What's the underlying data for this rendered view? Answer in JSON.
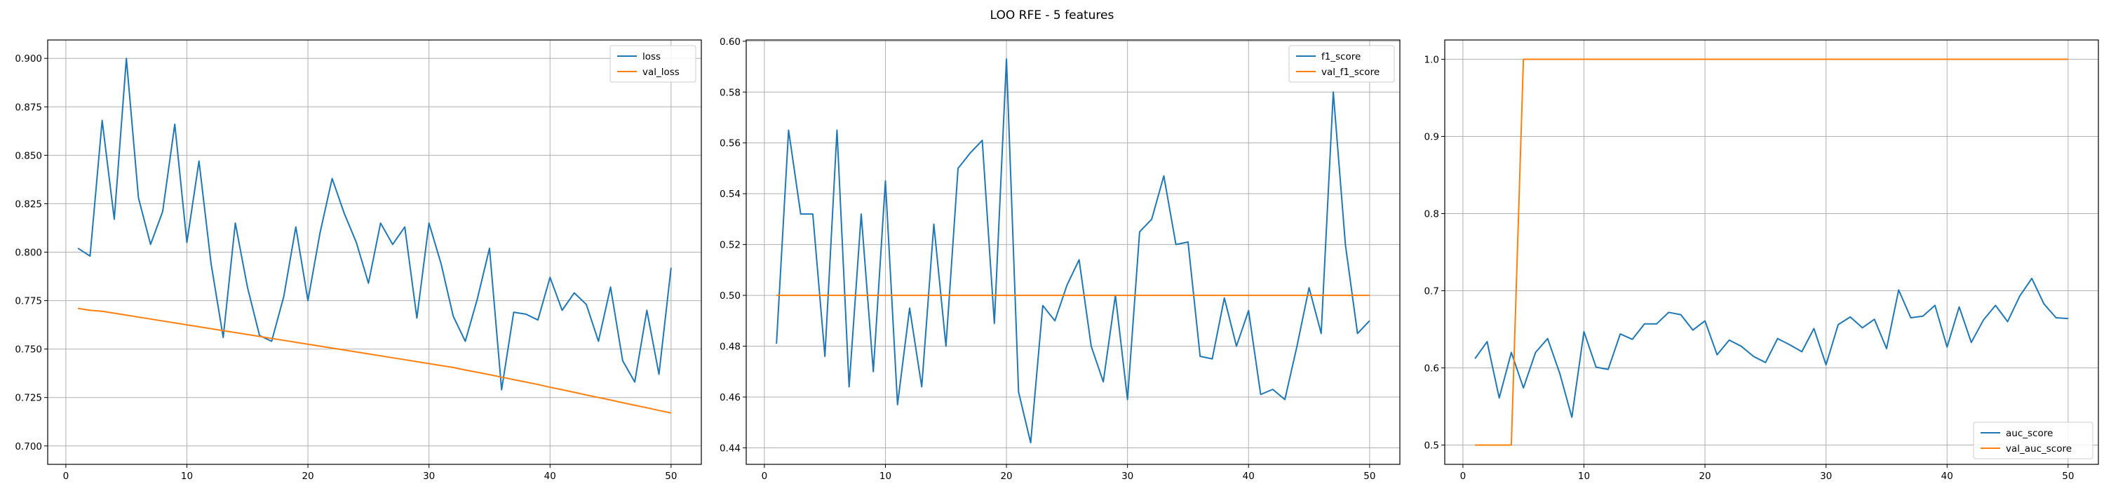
{
  "title": "LOO RFE - 5 features",
  "colors": {
    "series1": "#1f77b4",
    "series2": "#ff7f0e",
    "grid": "#b0b0b0",
    "frame": "#000000"
  },
  "chart_data": [
    {
      "type": "line",
      "xlim": [
        -1.5,
        52.5
      ],
      "ylim": [
        0.6905,
        0.9095
      ],
      "xticks": [
        0,
        10,
        20,
        30,
        40,
        50
      ],
      "yticks": [
        0.7,
        0.725,
        0.75,
        0.775,
        0.8,
        0.825,
        0.85,
        0.875,
        0.9
      ],
      "ytick_labels": [
        "0.700",
        "0.725",
        "0.750",
        "0.775",
        "0.800",
        "0.825",
        "0.850",
        "0.875",
        "0.900"
      ],
      "grid": true,
      "legend_position": "upper right",
      "x": [
        1,
        2,
        3,
        4,
        5,
        6,
        7,
        8,
        9,
        10,
        11,
        12,
        13,
        14,
        15,
        16,
        17,
        18,
        19,
        20,
        21,
        22,
        23,
        24,
        25,
        26,
        27,
        28,
        29,
        30,
        31,
        32,
        33,
        34,
        35,
        36,
        37,
        38,
        39,
        40,
        41,
        42,
        43,
        44,
        45,
        46,
        47,
        48,
        49,
        50
      ],
      "series": [
        {
          "name": "loss",
          "values": [
            0.802,
            0.798,
            0.868,
            0.817,
            0.9,
            0.828,
            0.804,
            0.821,
            0.866,
            0.805,
            0.847,
            0.794,
            0.756,
            0.815,
            0.782,
            0.757,
            0.754,
            0.777,
            0.813,
            0.775,
            0.81,
            0.838,
            0.82,
            0.805,
            0.784,
            0.815,
            0.804,
            0.813,
            0.766,
            0.815,
            0.794,
            0.767,
            0.754,
            0.776,
            0.802,
            0.729,
            0.769,
            0.768,
            0.765,
            0.787,
            0.77,
            0.779,
            0.773,
            0.754,
            0.782,
            0.744,
            0.733,
            0.77,
            0.737,
            0.792
          ]
        },
        {
          "name": "val_loss",
          "values": [
            0.771,
            0.77,
            0.7695,
            0.7685,
            0.7675,
            0.7665,
            0.7655,
            0.7645,
            0.7635,
            0.7625,
            0.7615,
            0.7605,
            0.7595,
            0.7585,
            0.7575,
            0.7565,
            0.7555,
            0.7545,
            0.7535,
            0.7525,
            0.7515,
            0.7505,
            0.7495,
            0.7485,
            0.7475,
            0.7465,
            0.7455,
            0.7445,
            0.7435,
            0.7425,
            0.7415,
            0.7405,
            0.7392,
            0.738,
            0.7368,
            0.7355,
            0.7342,
            0.733,
            0.7317,
            0.7303,
            0.729,
            0.7277,
            0.7263,
            0.725,
            0.7237,
            0.7223,
            0.721,
            0.7197,
            0.7183,
            0.717
          ]
        }
      ]
    },
    {
      "type": "line",
      "xlim": [
        -1.5,
        52.5
      ],
      "ylim": [
        0.4335,
        0.6005
      ],
      "xticks": [
        0,
        10,
        20,
        30,
        40,
        50
      ],
      "yticks": [
        0.44,
        0.46,
        0.48,
        0.5,
        0.52,
        0.54,
        0.56,
        0.58,
        0.6
      ],
      "ytick_labels": [
        "0.44",
        "0.46",
        "0.48",
        "0.50",
        "0.52",
        "0.54",
        "0.56",
        "0.58",
        "0.60"
      ],
      "grid": true,
      "legend_position": "upper right",
      "x": [
        1,
        2,
        3,
        4,
        5,
        6,
        7,
        8,
        9,
        10,
        11,
        12,
        13,
        14,
        15,
        16,
        17,
        18,
        19,
        20,
        21,
        22,
        23,
        24,
        25,
        26,
        27,
        28,
        29,
        30,
        31,
        32,
        33,
        34,
        35,
        36,
        37,
        38,
        39,
        40,
        41,
        42,
        43,
        44,
        45,
        46,
        47,
        48,
        49,
        50
      ],
      "series": [
        {
          "name": "f1_score",
          "values": [
            0.481,
            0.565,
            0.532,
            0.532,
            0.476,
            0.565,
            0.464,
            0.532,
            0.47,
            0.545,
            0.457,
            0.495,
            0.464,
            0.528,
            0.48,
            0.55,
            0.556,
            0.561,
            0.489,
            0.593,
            0.462,
            0.442,
            0.496,
            0.49,
            0.504,
            0.514,
            0.48,
            0.466,
            0.5,
            0.459,
            0.525,
            0.53,
            0.547,
            0.52,
            0.521,
            0.476,
            0.475,
            0.499,
            0.48,
            0.494,
            0.461,
            0.463,
            0.459,
            0.48,
            0.503,
            0.485,
            0.58,
            0.52,
            0.485,
            0.49
          ]
        },
        {
          "name": "val_f1_score",
          "values": [
            0.5,
            0.5,
            0.5,
            0.5,
            0.5,
            0.5,
            0.5,
            0.5,
            0.5,
            0.5,
            0.5,
            0.5,
            0.5,
            0.5,
            0.5,
            0.5,
            0.5,
            0.5,
            0.5,
            0.5,
            0.5,
            0.5,
            0.5,
            0.5,
            0.5,
            0.5,
            0.5,
            0.5,
            0.5,
            0.5,
            0.5,
            0.5,
            0.5,
            0.5,
            0.5,
            0.5,
            0.5,
            0.5,
            0.5,
            0.5,
            0.5,
            0.5,
            0.5,
            0.5,
            0.5,
            0.5,
            0.5,
            0.5,
            0.5,
            0.5
          ]
        }
      ]
    },
    {
      "type": "line",
      "xlim": [
        -1.5,
        52.5
      ],
      "ylim": [
        0.475,
        1.025
      ],
      "xticks": [
        0,
        10,
        20,
        30,
        40,
        50
      ],
      "yticks": [
        0.5,
        0.6,
        0.7,
        0.8,
        0.9,
        1.0
      ],
      "ytick_labels": [
        "0.5",
        "0.6",
        "0.7",
        "0.8",
        "0.9",
        "1.0"
      ],
      "grid": true,
      "legend_position": "lower right",
      "x": [
        1,
        2,
        3,
        4,
        5,
        6,
        7,
        8,
        9,
        10,
        11,
        12,
        13,
        14,
        15,
        16,
        17,
        18,
        19,
        20,
        21,
        22,
        23,
        24,
        25,
        26,
        27,
        28,
        29,
        30,
        31,
        32,
        33,
        34,
        35,
        36,
        37,
        38,
        39,
        40,
        41,
        42,
        43,
        44,
        45,
        46,
        47,
        48,
        49,
        50
      ],
      "series": [
        {
          "name": "auc_score",
          "values": [
            0.612,
            0.634,
            0.561,
            0.62,
            0.574,
            0.62,
            0.638,
            0.593,
            0.536,
            0.647,
            0.601,
            0.598,
            0.644,
            0.637,
            0.657,
            0.657,
            0.672,
            0.669,
            0.649,
            0.661,
            0.617,
            0.636,
            0.628,
            0.615,
            0.607,
            0.638,
            0.63,
            0.621,
            0.651,
            0.604,
            0.656,
            0.666,
            0.652,
            0.663,
            0.625,
            0.701,
            0.665,
            0.667,
            0.681,
            0.627,
            0.679,
            0.633,
            0.662,
            0.681,
            0.66,
            0.693,
            0.716,
            0.683,
            0.665,
            0.664
          ]
        },
        {
          "name": "val_auc_score",
          "values": [
            0.5,
            0.5,
            0.5,
            0.5,
            1.0,
            1.0,
            1.0,
            1.0,
            1.0,
            1.0,
            1.0,
            1.0,
            1.0,
            1.0,
            1.0,
            1.0,
            1.0,
            1.0,
            1.0,
            1.0,
            1.0,
            1.0,
            1.0,
            1.0,
            1.0,
            1.0,
            1.0,
            1.0,
            1.0,
            1.0,
            1.0,
            1.0,
            1.0,
            1.0,
            1.0,
            1.0,
            1.0,
            1.0,
            1.0,
            1.0,
            1.0,
            1.0,
            1.0,
            1.0,
            1.0,
            1.0,
            1.0,
            1.0,
            1.0,
            1.0
          ]
        }
      ]
    }
  ]
}
